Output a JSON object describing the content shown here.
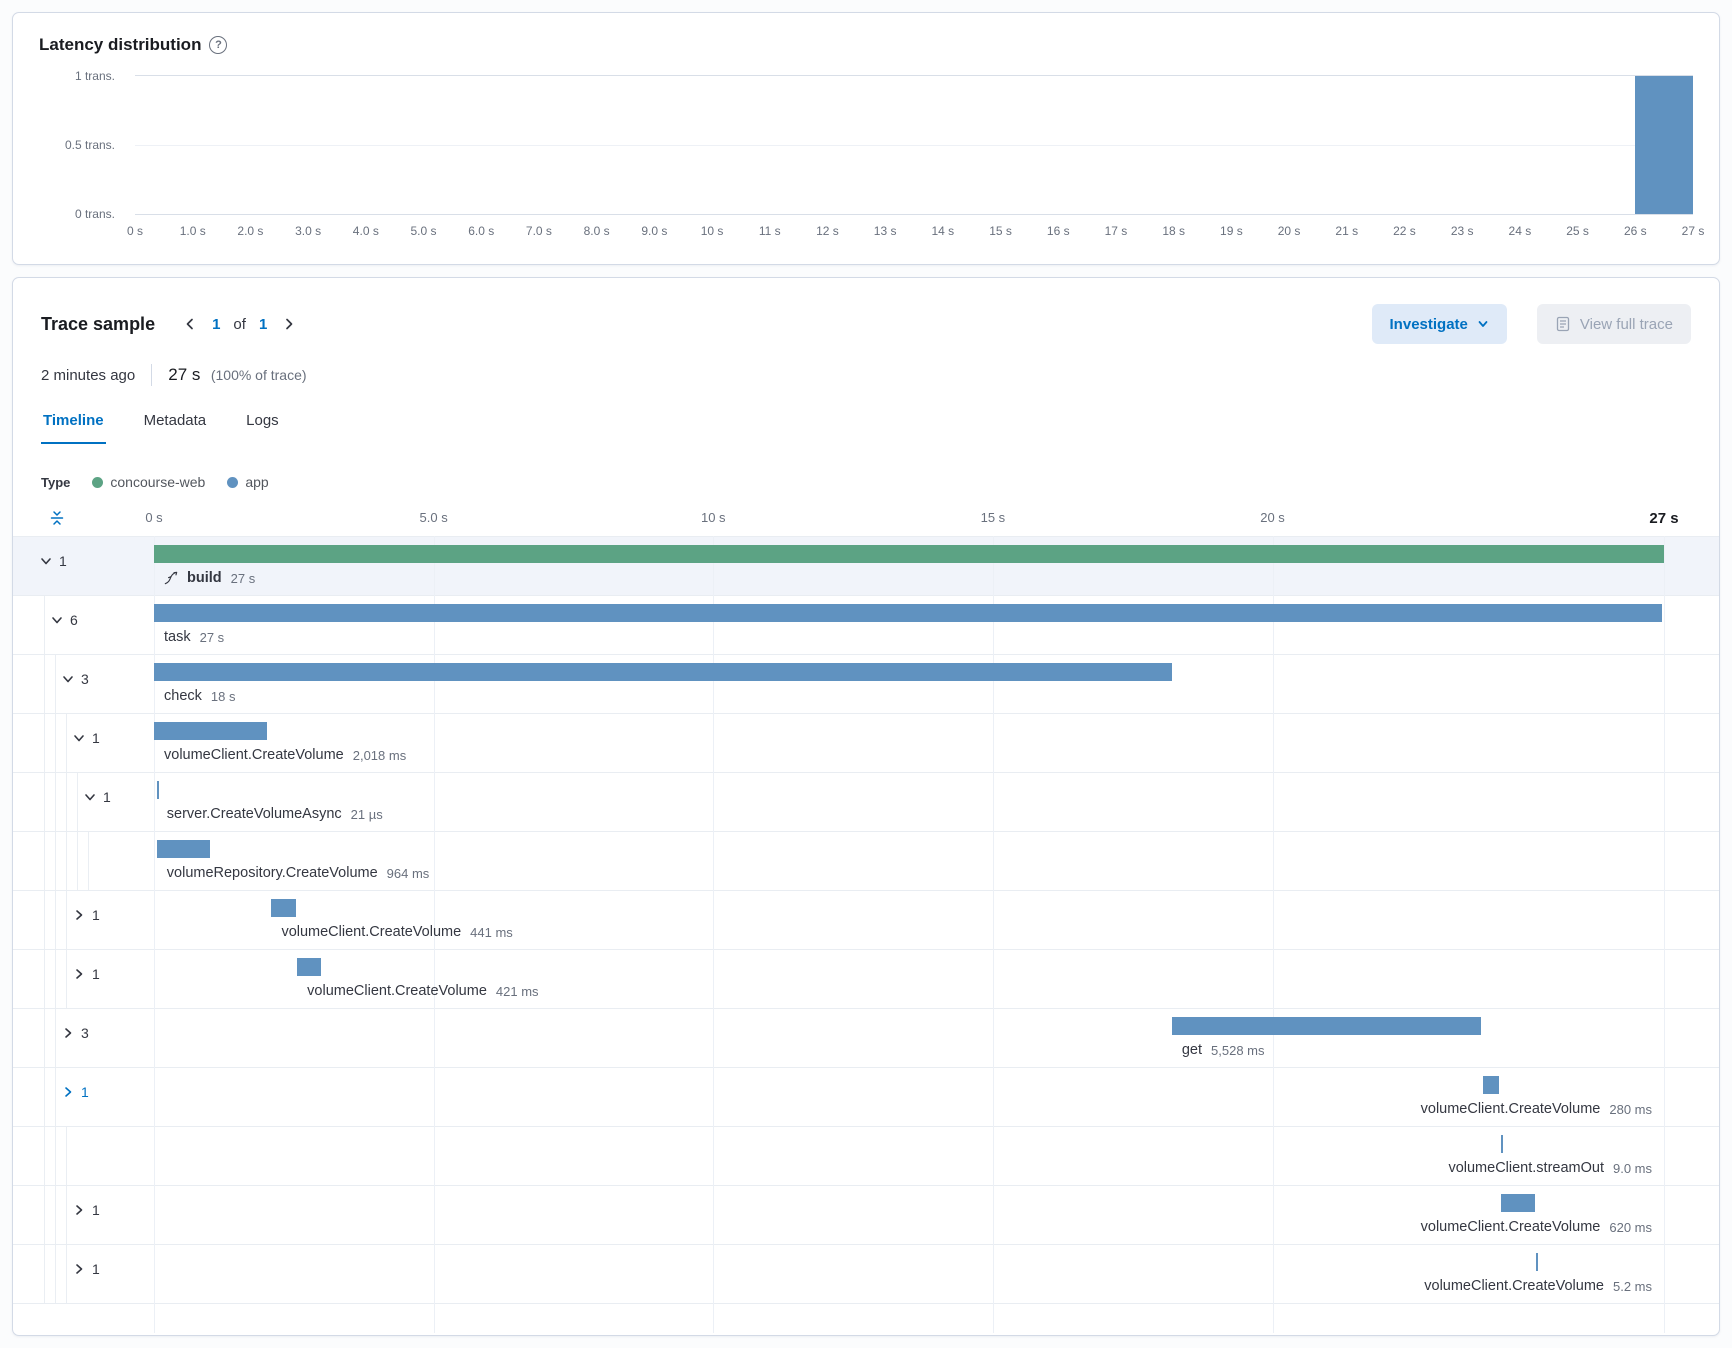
{
  "colors": {
    "accent_blue": "#0071c2",
    "bar_blue": "#6092c0",
    "bar_green": "#5ca384",
    "panel_border": "#d3dae6"
  },
  "latency_panel": {
    "title": "Latency distribution",
    "y_ticks": [
      "1 trans.",
      "0.5 trans.",
      "0 trans."
    ],
    "x_ticks": [
      "0 s",
      "1.0 s",
      "2.0 s",
      "3.0 s",
      "4.0 s",
      "5.0 s",
      "6.0 s",
      "7.0 s",
      "8.0 s",
      "9.0 s",
      "10 s",
      "11 s",
      "12 s",
      "13 s",
      "14 s",
      "15 s",
      "16 s",
      "17 s",
      "18 s",
      "19 s",
      "20 s",
      "21 s",
      "22 s",
      "23 s",
      "24 s",
      "25 s",
      "26 s",
      "27 s"
    ],
    "chart_data": {
      "type": "bar",
      "title": "Latency distribution",
      "x_domain_s": [
        0,
        27
      ],
      "y_domain_transactions": [
        0,
        1
      ],
      "bars": [
        {
          "start_s": 26,
          "end_s": 27,
          "transactions": 1
        }
      ]
    }
  },
  "trace_sample": {
    "title": "Trace sample",
    "pagination": {
      "current": "1",
      "of_label": "of",
      "total": "1"
    },
    "timestamp": "2 minutes ago",
    "duration": "27 s",
    "trace_percent": "(100% of trace)",
    "buttons": {
      "investigate": "Investigate",
      "view_full_trace": "View full trace"
    },
    "tabs": [
      {
        "label": "Timeline",
        "active": true
      },
      {
        "label": "Metadata",
        "active": false
      },
      {
        "label": "Logs",
        "active": false
      }
    ],
    "legend": {
      "label": "Type",
      "items": [
        {
          "label": "concourse-web",
          "color": "#5ca384"
        },
        {
          "label": "app",
          "color": "#6092c0"
        }
      ]
    },
    "timeline": {
      "total_s": 27,
      "axis_ticks": [
        {
          "label": "0 s",
          "s": 0
        },
        {
          "label": "5.0 s",
          "s": 5
        },
        {
          "label": "10 s",
          "s": 10
        },
        {
          "label": "15 s",
          "s": 15
        },
        {
          "label": "20 s",
          "s": 20
        },
        {
          "label": "27 s",
          "s": 27,
          "emphasis": true
        }
      ],
      "spans": [
        {
          "name": "build",
          "duration": "27 s",
          "service": "concourse-web",
          "start_s": 0,
          "end_s": 27,
          "indent": 0,
          "expand": {
            "dir": "down",
            "count": "1"
          },
          "selected": true,
          "icon": true,
          "bold": true
        },
        {
          "name": "task",
          "duration": "27 s",
          "service": "app",
          "start_s": 0,
          "end_s": 26.97,
          "indent": 1,
          "expand": {
            "dir": "down",
            "count": "6"
          }
        },
        {
          "name": "check",
          "duration": "18 s",
          "service": "app",
          "start_s": 0,
          "end_s": 18.2,
          "indent": 2,
          "expand": {
            "dir": "down",
            "count": "3"
          }
        },
        {
          "name": "volumeClient.CreateVolume",
          "duration": "2,018 ms",
          "service": "app",
          "start_s": 0,
          "end_s": 2.02,
          "indent": 3,
          "expand": {
            "dir": "down",
            "count": "1"
          }
        },
        {
          "name": "server.CreateVolumeAsync",
          "duration": "21 µs",
          "service": "app",
          "start_s": 0.05,
          "end_s": 0.09,
          "indent": 4,
          "expand": {
            "dir": "down",
            "count": "1"
          }
        },
        {
          "name": "volumeRepository.CreateVolume",
          "duration": "964 ms",
          "service": "app",
          "start_s": 0.05,
          "end_s": 1.01,
          "indent": 5,
          "expand": null
        },
        {
          "name": "volumeClient.CreateVolume",
          "duration": "441 ms",
          "service": "app",
          "start_s": 2.1,
          "end_s": 2.54,
          "indent": 3,
          "expand": {
            "dir": "right",
            "count": "1"
          }
        },
        {
          "name": "volumeClient.CreateVolume",
          "duration": "421 ms",
          "service": "app",
          "start_s": 2.56,
          "end_s": 2.98,
          "indent": 3,
          "expand": {
            "dir": "right",
            "count": "1"
          }
        },
        {
          "name": "get",
          "duration": "5,528 ms",
          "service": "app",
          "start_s": 18.2,
          "end_s": 23.73,
          "indent": 2,
          "expand": {
            "dir": "right",
            "count": "3"
          }
        },
        {
          "name": "volumeClient.CreateVolume",
          "duration": "280 ms",
          "service": "app",
          "start_s": 23.77,
          "end_s": 24.05,
          "indent": 2,
          "expand": {
            "dir": "right",
            "count": "1",
            "highlight": true
          }
        },
        {
          "name": "volumeClient.streamOut",
          "duration": "9.0 ms",
          "service": "app",
          "start_s": 24.08,
          "end_s": 24.1,
          "indent": 3,
          "expand": null
        },
        {
          "name": "volumeClient.CreateVolume",
          "duration": "620 ms",
          "service": "app",
          "start_s": 24.08,
          "end_s": 24.7,
          "indent": 3,
          "expand": {
            "dir": "right",
            "count": "1"
          }
        },
        {
          "name": "volumeClient.CreateVolume",
          "duration": "5.2 ms",
          "service": "app",
          "start_s": 24.71,
          "end_s": 24.74,
          "indent": 3,
          "expand": {
            "dir": "right",
            "count": "1"
          }
        }
      ]
    }
  }
}
